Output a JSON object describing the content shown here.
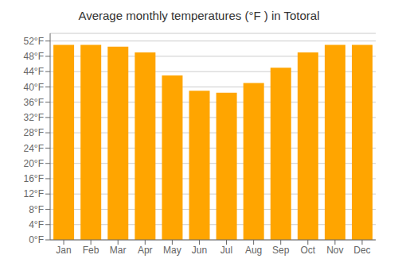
{
  "chart_data": {
    "type": "bar",
    "title": "Average monthly temperatures (°F ) in Totoral",
    "categories": [
      "Jan",
      "Feb",
      "Mar",
      "Apr",
      "May",
      "Jun",
      "Jul",
      "Aug",
      "Sep",
      "Oct",
      "Nov",
      "Dec"
    ],
    "values": [
      51.0,
      51.0,
      50.5,
      49.0,
      43.0,
      39.0,
      38.5,
      41.0,
      45.0,
      49.0,
      51.0,
      51.0
    ],
    "color": "#FFA500",
    "ylim": [
      0,
      54
    ],
    "yticks": [
      {
        "value": 0,
        "label": "0°F"
      },
      {
        "value": 4,
        "label": "4°F"
      },
      {
        "value": 8,
        "label": "8°F"
      },
      {
        "value": 12,
        "label": "12°F"
      },
      {
        "value": 16,
        "label": "16°F"
      },
      {
        "value": 20,
        "label": "20°F"
      },
      {
        "value": 24,
        "label": "24°F"
      },
      {
        "value": 28,
        "label": "28°F"
      },
      {
        "value": 32,
        "label": "32°F"
      },
      {
        "value": 36,
        "label": "36°F"
      },
      {
        "value": 40,
        "label": "40°F"
      },
      {
        "value": 44,
        "label": "44°F"
      },
      {
        "value": 48,
        "label": "48°F"
      },
      {
        "value": 52,
        "label": "52°F"
      }
    ],
    "grid": true
  }
}
